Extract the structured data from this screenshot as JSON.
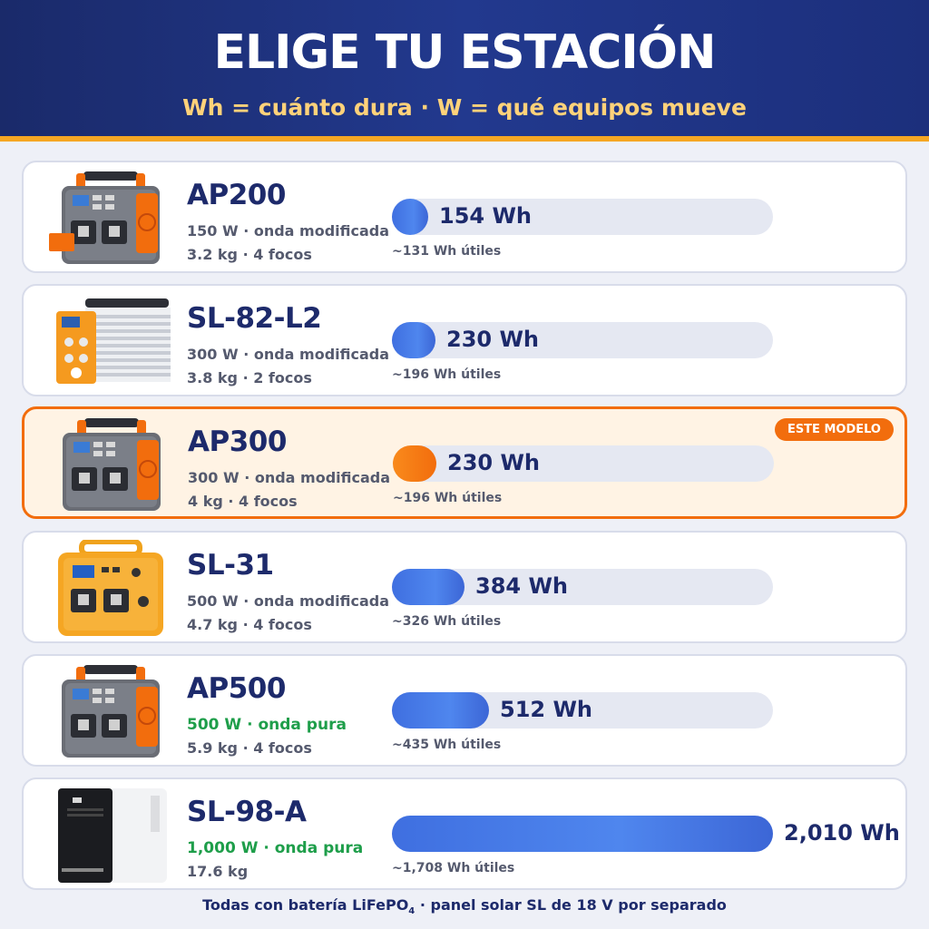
{
  "header": {
    "title": "ELIGE TU ESTACIÓN",
    "subtitle": "Wh = cuánto dura · W = qué equipos mueve"
  },
  "colors": {
    "navy": "#1d2a6b",
    "accent_orange": "#f26d0d",
    "bar_blue": "#4f86ee",
    "pure_green": "#1e9e4a"
  },
  "scale_max_wh": 2010,
  "products": [
    {
      "model": "AP200",
      "power": "150 W · onda modificada",
      "details": "3.2 kg · 4 focos",
      "capacity_wh": 154,
      "capacity_label": "154 Wh",
      "useful": "~131 Wh útiles",
      "pure": false,
      "highlight": false,
      "image": "grey-orange-power-station"
    },
    {
      "model": "SL-82-L2",
      "power": "300 W · onda modificada",
      "details": "3.8 kg · 2 focos",
      "capacity_wh": 230,
      "capacity_label": "230 Wh",
      "useful": "~196 Wh útiles",
      "pure": false,
      "highlight": false,
      "image": "white-finned-power-station"
    },
    {
      "model": "AP300",
      "power": "300 W · onda modificada",
      "details": "4 kg · 4 focos",
      "capacity_wh": 230,
      "capacity_label": "230 Wh",
      "useful": "~196 Wh útiles",
      "pure": false,
      "highlight": true,
      "badge": "ESTE MODELO",
      "image": "grey-orange-power-station"
    },
    {
      "model": "SL-31",
      "power": "500 W · onda modificada",
      "details": "4.7 kg · 4 focos",
      "capacity_wh": 384,
      "capacity_label": "384 Wh",
      "useful": "~326 Wh útiles",
      "pure": false,
      "highlight": false,
      "image": "yellow-power-station"
    },
    {
      "model": "AP500",
      "power": "500 W · onda pura",
      "details": "5.9 kg · 4 focos",
      "capacity_wh": 512,
      "capacity_label": "512 Wh",
      "useful": "~435 Wh útiles",
      "pure": true,
      "highlight": false,
      "image": "grey-orange-power-station"
    },
    {
      "model": "SL-98-A",
      "power": "1,000 W · onda pura",
      "details": "17.6 kg",
      "capacity_wh": 2010,
      "capacity_label": "2,010 Wh",
      "useful": "~1,708 Wh útiles",
      "pure": true,
      "highlight": false,
      "image": "white-tower-power-station"
    }
  ],
  "footer": {
    "text_a": "Todas con batería LiFePO",
    "subscript": "4",
    "text_b": " · panel solar SL de 18 V por separado"
  }
}
